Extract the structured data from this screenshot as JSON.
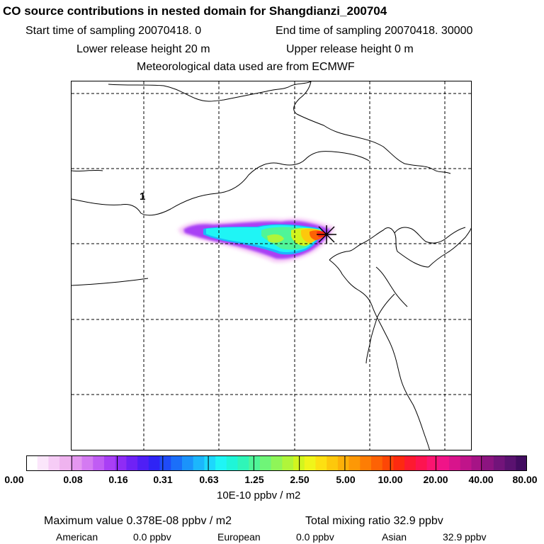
{
  "header": {
    "title": "CO  source contributions in nested domain for Shangdianzi_200704",
    "start_time": "Start time of sampling 20070418.     0",
    "end_time": "End time of sampling 20070418. 30000",
    "lower_release": "Lower release height   20 m",
    "upper_release": "Upper release height    0 m",
    "meteo": "Meteorological data used are from ECMWF"
  },
  "map": {
    "marker_label": "1",
    "receptor_symbol": "*"
  },
  "colorbar": {
    "ticks": [
      "0.00",
      "0.08",
      "0.16",
      "0.31",
      "0.63",
      "1.25",
      "2.50",
      "5.00",
      "10.00",
      "20.00",
      "40.00",
      "80.00"
    ],
    "colors": [
      "#ffffff",
      "#fbe6fb",
      "#f6ccf6",
      "#efb3ef",
      "#e497f0",
      "#d47af2",
      "#c05cf4",
      "#a93ff5",
      "#8f2cf5",
      "#6f22f5",
      "#4f1ff5",
      "#2f24f5",
      "#1f4bf8",
      "#1b6ff9",
      "#1b93fb",
      "#1cb6fc",
      "#1dd8fd",
      "#1ff5f5",
      "#1ff5d8",
      "#2ff5b8",
      "#4ff598",
      "#6ff578",
      "#8ff558",
      "#b0f53a",
      "#d2f51f",
      "#f0f51a",
      "#fde012",
      "#fdc80c",
      "#fdb008",
      "#fd9806",
      "#fd7d05",
      "#fd6205",
      "#fd4606",
      "#fd2a10",
      "#fd1a30",
      "#fd1450",
      "#fb1470",
      "#f01488",
      "#d8148c",
      "#c0148a",
      "#a61486",
      "#8c1480",
      "#72147a",
      "#5a1270",
      "#420c60"
    ],
    "unit": "10E-10 ppbv / m2"
  },
  "summary": {
    "max_value": "Maximum value  0.378E-08 ppbv / m2",
    "total": "Total mixing ratio      32.9 ppbv",
    "american_label": "American",
    "american_value": "0.0 ppbv",
    "european_label": "European",
    "european_value": "0.0 ppbv",
    "asian_label": "Asian",
    "asian_value": "32.9 ppbv"
  }
}
